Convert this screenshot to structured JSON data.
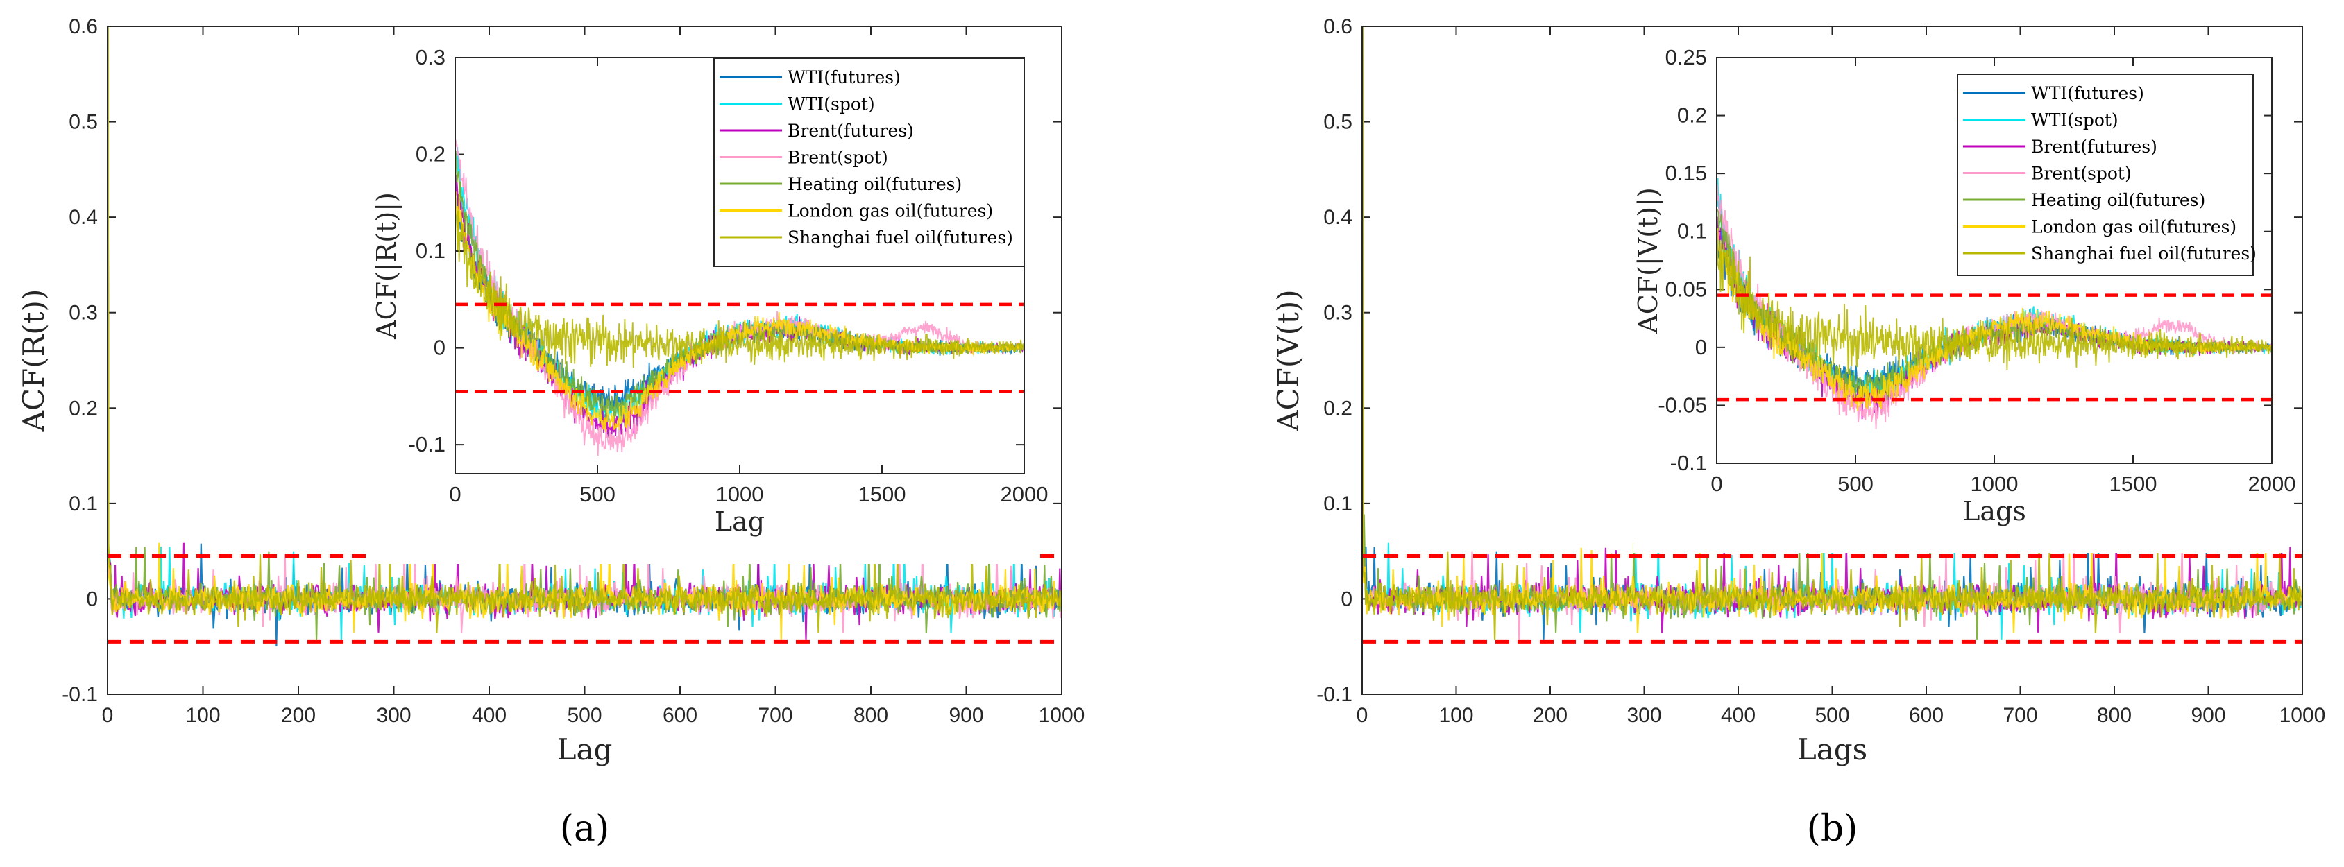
{
  "colors": {
    "wti_futures": "#0072BD",
    "wti_spot": "#00E5EE",
    "brent_futures": "#BF00BF",
    "brent_spot": "#FF99CC",
    "heating_oil": "#77AC30",
    "london_gas_oil": "#FFD700",
    "shanghai_fuel_oil": "#B8B800",
    "confidence_band": "#FF0000"
  },
  "chart_data": [
    {
      "id": "a",
      "type": "line",
      "panel_label": "(a)",
      "xlabel": "Lag",
      "ylabel": "ACF(R(t))",
      "xlim": [
        0,
        1000
      ],
      "ylim": [
        -0.1,
        0.6
      ],
      "xticks": [
        0,
        100,
        200,
        300,
        400,
        500,
        600,
        700,
        800,
        900,
        1000
      ],
      "yticks": [
        -0.1,
        0,
        0.1,
        0.2,
        0.3,
        0.4,
        0.5,
        0.6
      ],
      "ytick_labels": [
        "-0.1",
        "0",
        "0.1",
        "0.2",
        "0.3",
        "0.4",
        "0.5",
        "0.6"
      ],
      "confidence_bounds": [
        0.045,
        -0.045
      ],
      "series_description": "lag-0 value 1.0 (clipped), noise around 0 with amplitude ~0.03, spikes up to ~0.08",
      "inset": {
        "xlabel": "Lag",
        "ylabel": "ACF(|R(t)|)",
        "xlim": [
          0,
          2000
        ],
        "ylim": [
          -0.13,
          0.3
        ],
        "xticks": [
          0,
          500,
          1000,
          1500,
          2000
        ],
        "yticks": [
          -0.1,
          0,
          0.1,
          0.2,
          0.3
        ],
        "ytick_labels": [
          "-0.1",
          "0",
          "0.1",
          "0.2",
          "0.3"
        ],
        "confidence_bounds": [
          0.045,
          -0.045
        ],
        "series_description": "starts near 0.2-0.3 decaying to about -0.08 near lag 500, recovering to ~0.02 near lag 1000, tapering to 0 at 2000"
      }
    },
    {
      "id": "b",
      "type": "line",
      "panel_label": "(b)",
      "xlabel": "Lags",
      "ylabel": "ACF(V(t))",
      "xlim": [
        0,
        1000
      ],
      "ylim": [
        -0.1,
        0.6
      ],
      "xticks": [
        0,
        100,
        200,
        300,
        400,
        500,
        600,
        700,
        800,
        900,
        1000
      ],
      "yticks": [
        -0.1,
        0,
        0.1,
        0.2,
        0.3,
        0.4,
        0.5,
        0.6
      ],
      "ytick_labels": [
        "-0.1",
        "0",
        "0.1",
        "0.2",
        "0.3",
        "0.4",
        "0.5",
        "0.6"
      ],
      "confidence_bounds": [
        0.045,
        -0.045
      ],
      "series_description": "lag-0 value 1.0 (clipped), noise around 0 with amplitude ~0.03, spikes up to ~0.08",
      "inset": {
        "xlabel": "Lags",
        "ylabel": "ACF(|V(t)|)",
        "xlim": [
          0,
          2000
        ],
        "ylim": [
          -0.1,
          0.25
        ],
        "xticks": [
          0,
          500,
          1000,
          1500,
          2000
        ],
        "yticks": [
          -0.1,
          -0.05,
          0,
          0.05,
          0.1,
          0.15,
          0.2,
          0.25
        ],
        "ytick_labels": [
          "-0.1",
          "-0.05",
          "0",
          "0.05",
          "0.1",
          "0.15",
          "0.2",
          "0.25"
        ],
        "confidence_bounds": [
          0.045,
          -0.045
        ],
        "series_description": "starts near 0.1-0.25 decaying to about -0.05 near lag 500, recovering to ~0.02 near lag 1000, tapering to 0 at 2000"
      }
    }
  ],
  "legend": [
    {
      "label": "WTI(futures)",
      "color_key": "wti_futures"
    },
    {
      "label": "WTI(spot)",
      "color_key": "wti_spot"
    },
    {
      "label": "Brent(futures)",
      "color_key": "brent_futures"
    },
    {
      "label": "Brent(spot)",
      "color_key": "brent_spot"
    },
    {
      "label": "Heating oil(futures)",
      "color_key": "heating_oil"
    },
    {
      "label": "London gas oil(futures)",
      "color_key": "london_gas_oil"
    },
    {
      "label": "Shanghai fuel oil(futures)",
      "color_key": "shanghai_fuel_oil"
    }
  ]
}
